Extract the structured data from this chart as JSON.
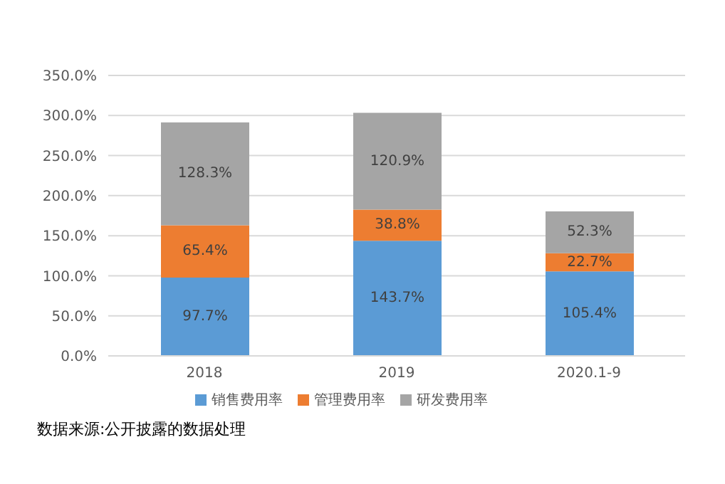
{
  "chart_data": {
    "type": "bar",
    "stacked": true,
    "categories": [
      "2018",
      "2019",
      "2020.1-9"
    ],
    "series": [
      {
        "name": "销售费用率",
        "color": "#5b9bd5",
        "values": [
          97.7,
          143.7,
          105.4
        ],
        "value_labels": [
          "97.7%",
          "143.7%",
          "105.4%"
        ]
      },
      {
        "name": "管理费用率",
        "color": "#ed7d31",
        "values": [
          65.4,
          38.8,
          22.7
        ],
        "value_labels": [
          "65.4%",
          "38.8%",
          "22.7%"
        ]
      },
      {
        "name": "研发费用率",
        "color": "#a5a5a5",
        "values": [
          128.3,
          120.9,
          52.3
        ],
        "value_labels": [
          "128.3%",
          "120.9%",
          "52.3%"
        ]
      }
    ],
    "ylim": [
      0,
      350
    ],
    "yticks": [
      {
        "value": 0,
        "label": "0.0%"
      },
      {
        "value": 50,
        "label": "50.0%"
      },
      {
        "value": 100,
        "label": "100.0%"
      },
      {
        "value": 150,
        "label": "150.0%"
      },
      {
        "value": 200,
        "label": "200.0%"
      },
      {
        "value": 250,
        "label": "250.0%"
      },
      {
        "value": 300,
        "label": "300.0%"
      },
      {
        "value": 350,
        "label": "350.0%"
      }
    ],
    "grid": "y",
    "legend": "bottom",
    "annotations": [
      "数据来源:公开披露的数据处理"
    ]
  }
}
